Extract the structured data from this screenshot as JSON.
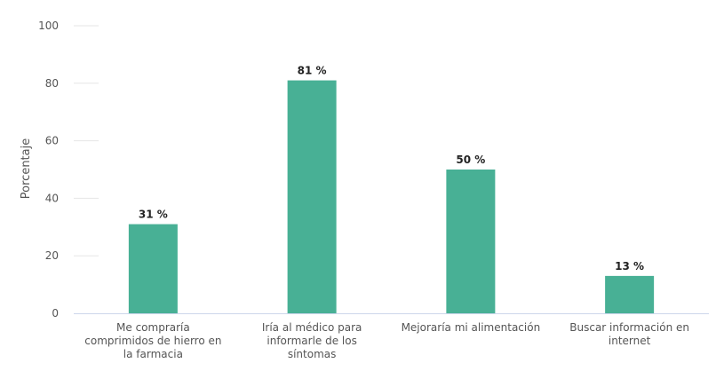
{
  "chart_data": {
    "type": "bar",
    "title": "",
    "xlabel": "",
    "ylabel": "Porcentaje",
    "ylim": [
      0,
      100
    ],
    "yticks": [
      0,
      20,
      40,
      60,
      80,
      100
    ],
    "categories": [
      [
        "Me compraría",
        "comprimidos de hierro en",
        "la farmacia"
      ],
      [
        "Iría al médico para",
        "informarle de los",
        "síntomas"
      ],
      [
        "Mejoraría mi alimentación"
      ],
      [
        "Buscar información en",
        "internet"
      ]
    ],
    "values": [
      31,
      81,
      50,
      13
    ],
    "data_labels": [
      "31 %",
      "81 %",
      "50 %",
      "13 %"
    ],
    "bar_color": "#48b095",
    "grid": true
  }
}
